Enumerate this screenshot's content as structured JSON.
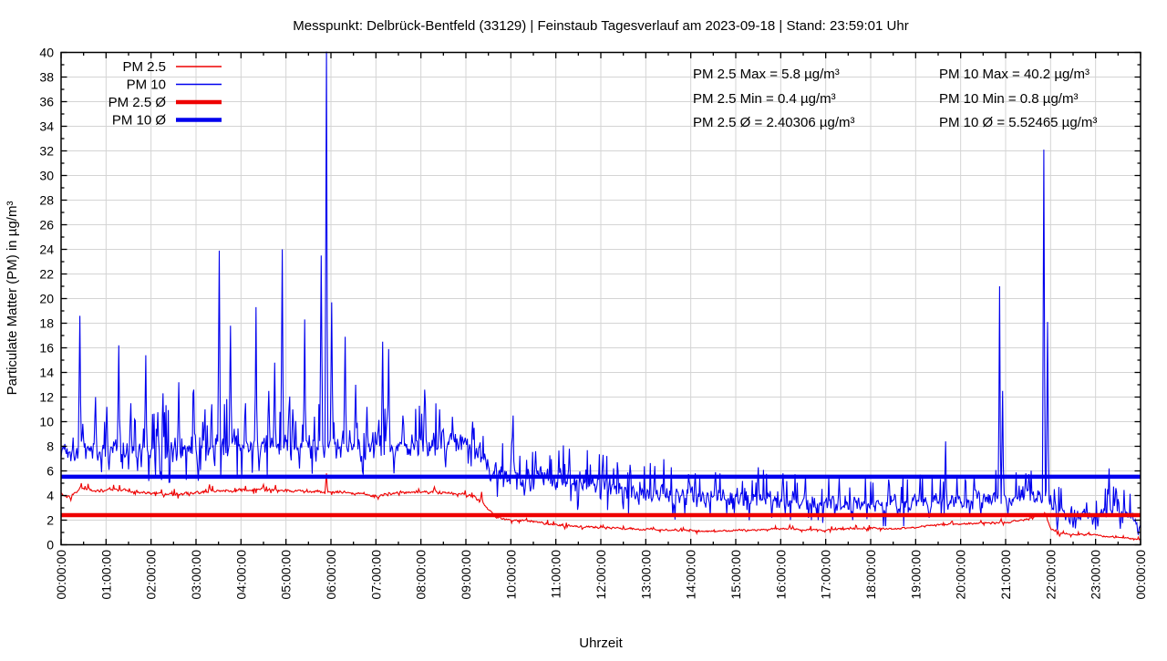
{
  "chart_data": {
    "type": "line",
    "title": "Messpunkt: Delbrück-Bentfeld (33129) | Feinstaub Tagesverlauf am 2023-09-18 | Stand: 23:59:01 Uhr",
    "xlabel": "Uhrzeit",
    "ylabel": "Particulate Matter (PM) in µg/m³",
    "xlim_hours": [
      0,
      24
    ],
    "ylim": [
      0,
      40
    ],
    "y_tick_step": 2,
    "y_minor_step": 1,
    "x_tick_step_hours": 1,
    "x_minor_step_hours": 0.5,
    "grid": true,
    "legend_position": "top-left",
    "x_tick_labels": [
      "00:00:00",
      "01:00:00",
      "02:00:00",
      "03:00:00",
      "04:00:00",
      "05:00:00",
      "06:00:00",
      "07:00:00",
      "08:00:00",
      "09:00:00",
      "10:00:00",
      "11:00:00",
      "12:00:00",
      "13:00:00",
      "14:00:00",
      "15:00:00",
      "16:00:00",
      "17:00:00",
      "18:00:00",
      "19:00:00",
      "20:00:00",
      "21:00:00",
      "22:00:00",
      "23:00:00",
      "00:00:00"
    ],
    "colors": {
      "red": "#ee0000",
      "blue": "#0000ee",
      "grid": "#d4d4d4",
      "border": "#000000",
      "text": "#000000"
    },
    "noise_seed": 1337,
    "series": [
      {
        "name": "PM 2.5",
        "kind": "data",
        "color": "#ee0000",
        "width": 1.1,
        "seed_offset": 11,
        "up_prob": 0.05,
        "down_prob": 0.04,
        "clamp_min": 0.4,
        "clamp_max": 5.8,
        "baseline": [
          [
            0,
            4.2
          ],
          [
            0.2,
            3.9
          ],
          [
            0.45,
            4.6
          ],
          [
            0.8,
            4.4
          ],
          [
            1.2,
            4.5
          ],
          [
            1.6,
            4.3
          ],
          [
            2,
            4.2
          ],
          [
            2.5,
            4.1
          ],
          [
            3,
            4.2
          ],
          [
            3.5,
            4.4
          ],
          [
            4,
            4.4
          ],
          [
            4.5,
            4.5
          ],
          [
            5,
            4.4
          ],
          [
            5.5,
            4.3
          ],
          [
            6,
            4.3
          ],
          [
            6.5,
            4.2
          ],
          [
            7,
            4.0
          ],
          [
            7.5,
            4.2
          ],
          [
            8,
            4.3
          ],
          [
            8.5,
            4.2
          ],
          [
            9,
            4.1
          ],
          [
            9.2,
            3.9
          ],
          [
            9.7,
            2.2
          ],
          [
            10,
            2.0
          ],
          [
            10.5,
            1.9
          ],
          [
            11,
            1.6
          ],
          [
            11.5,
            1.5
          ],
          [
            12,
            1.4
          ],
          [
            12.5,
            1.3
          ],
          [
            13,
            1.25
          ],
          [
            13.5,
            1.2
          ],
          [
            14,
            1.15
          ],
          [
            14.5,
            1.1
          ],
          [
            15,
            1.15
          ],
          [
            15.5,
            1.2
          ],
          [
            16,
            1.3
          ],
          [
            16.5,
            1.25
          ],
          [
            17,
            1.2
          ],
          [
            17.5,
            1.3
          ],
          [
            18,
            1.35
          ],
          [
            18.5,
            1.3
          ],
          [
            19,
            1.4
          ],
          [
            19.5,
            1.6
          ],
          [
            20,
            1.7
          ],
          [
            20.5,
            1.75
          ],
          [
            21,
            1.8
          ],
          [
            21.4,
            2.0
          ],
          [
            21.7,
            2.3
          ],
          [
            21.9,
            2.4
          ],
          [
            22,
            1.3
          ],
          [
            22.2,
            0.95
          ],
          [
            22.5,
            0.8
          ],
          [
            22.9,
            0.85
          ],
          [
            23.2,
            0.7
          ],
          [
            23.5,
            0.6
          ],
          [
            23.8,
            0.5
          ],
          [
            24,
            0.45
          ]
        ],
        "noise": [
          [
            0,
            0.15
          ],
          [
            9,
            0.13
          ],
          [
            10,
            0.1
          ],
          [
            22,
            0.08
          ],
          [
            24,
            0.06
          ]
        ],
        "spikes": [
          [
            0.45,
            5.0
          ],
          [
            3.3,
            4.9
          ],
          [
            4.5,
            4.9
          ],
          [
            5.9,
            5.8
          ],
          [
            8.3,
            4.7
          ],
          [
            9.35,
            4.3
          ],
          [
            16.2,
            1.6
          ],
          [
            19.8,
            1.9
          ],
          [
            20.9,
            2.1
          ],
          [
            21.87,
            2.6
          ],
          [
            22.85,
            1.0
          ]
        ],
        "dips": [
          [
            0.22,
            3.6
          ],
          [
            7.05,
            3.7
          ],
          [
            11.2,
            1.3
          ],
          [
            22.2,
            0.7
          ],
          [
            23.85,
            0.4
          ]
        ]
      },
      {
        "name": "PM 10",
        "kind": "data",
        "color": "#0000ee",
        "width": 1.1,
        "seed_offset": 0,
        "up_prob": 0.1,
        "down_prob": 0.07,
        "clamp_min": 0.8,
        "clamp_max": 40.2,
        "baseline": [
          [
            0,
            7.8
          ],
          [
            0.5,
            7.9
          ],
          [
            1,
            7.7
          ],
          [
            1.5,
            7.8
          ],
          [
            2,
            8.0
          ],
          [
            2.5,
            7.9
          ],
          [
            3,
            8.0
          ],
          [
            3.5,
            8.1
          ],
          [
            4,
            8.1
          ],
          [
            4.5,
            8.3
          ],
          [
            5,
            8.0
          ],
          [
            5.5,
            8.2
          ],
          [
            6,
            8.1
          ],
          [
            6.5,
            8.0
          ],
          [
            7,
            8.1
          ],
          [
            7.5,
            8.3
          ],
          [
            8,
            8.2
          ],
          [
            8.5,
            8.4
          ],
          [
            9,
            8.2
          ],
          [
            9.3,
            7.6
          ],
          [
            9.6,
            5.8
          ],
          [
            10,
            5.5
          ],
          [
            10.5,
            5.5
          ],
          [
            11,
            5.2
          ],
          [
            11.5,
            5.0
          ],
          [
            12,
            4.8
          ],
          [
            12.5,
            4.5
          ],
          [
            13,
            4.3
          ],
          [
            13.5,
            4.1
          ],
          [
            14,
            4.0
          ],
          [
            14.5,
            3.9
          ],
          [
            15,
            3.8
          ],
          [
            15.5,
            3.7
          ],
          [
            16,
            3.6
          ],
          [
            16.5,
            3.5
          ],
          [
            17,
            3.4
          ],
          [
            17.5,
            3.3
          ],
          [
            18,
            3.2
          ],
          [
            18.5,
            3.3
          ],
          [
            19,
            3.4
          ],
          [
            19.5,
            3.5
          ],
          [
            20,
            3.6
          ],
          [
            20.5,
            3.9
          ],
          [
            21,
            3.8
          ],
          [
            21.5,
            4.0
          ],
          [
            21.9,
            4.2
          ],
          [
            22.1,
            3.0
          ],
          [
            22.4,
            2.5
          ],
          [
            22.8,
            2.5
          ],
          [
            23.1,
            2.6
          ],
          [
            23.4,
            2.9
          ],
          [
            23.6,
            2.7
          ],
          [
            23.8,
            2.2
          ],
          [
            24,
            1.6
          ]
        ],
        "noise": [
          [
            0,
            1.1
          ],
          [
            3,
            1.3
          ],
          [
            6,
            1.3
          ],
          [
            8,
            1.2
          ],
          [
            9,
            1.0
          ],
          [
            9.6,
            1.0
          ],
          [
            11,
            1.1
          ],
          [
            12,
            1.0
          ],
          [
            13,
            0.9
          ],
          [
            15,
            0.8
          ],
          [
            18,
            0.8
          ],
          [
            20,
            0.8
          ],
          [
            21.5,
            0.8
          ],
          [
            22.2,
            0.7
          ],
          [
            23,
            0.8
          ],
          [
            24,
            0.6
          ]
        ],
        "spikes": [
          [
            0.42,
            18.6
          ],
          [
            0.77,
            12.0
          ],
          [
            1.02,
            11.2
          ],
          [
            1.28,
            16.2
          ],
          [
            1.55,
            11.5
          ],
          [
            1.88,
            15.4
          ],
          [
            2.27,
            12.3
          ],
          [
            2.62,
            13.2
          ],
          [
            2.95,
            12.6
          ],
          [
            3.2,
            11.0
          ],
          [
            3.51,
            23.9
          ],
          [
            3.77,
            17.8
          ],
          [
            4.1,
            11.5
          ],
          [
            4.33,
            19.3
          ],
          [
            4.62,
            12.5
          ],
          [
            4.75,
            14.8
          ],
          [
            4.91,
            24.0
          ],
          [
            5.15,
            11.0
          ],
          [
            5.42,
            18.3
          ],
          [
            5.78,
            23.5
          ],
          [
            5.9,
            40.2
          ],
          [
            6.02,
            19.7
          ],
          [
            6.31,
            16.9
          ],
          [
            6.55,
            13.0
          ],
          [
            6.8,
            11.2
          ],
          [
            7.15,
            16.5
          ],
          [
            7.28,
            15.9
          ],
          [
            7.6,
            10.5
          ],
          [
            8.09,
            12.6
          ],
          [
            8.41,
            11.0
          ],
          [
            8.7,
            10.4
          ],
          [
            9.15,
            10.0
          ],
          [
            10.05,
            10.5
          ],
          [
            10.55,
            7.6
          ],
          [
            11.3,
            7.8
          ],
          [
            12.05,
            7.3
          ],
          [
            12.65,
            6.5
          ],
          [
            13.2,
            6.4
          ],
          [
            14.1,
            5.8
          ],
          [
            14.55,
            5.9
          ],
          [
            15.5,
            6.3
          ],
          [
            16.05,
            5.8
          ],
          [
            16.55,
            5.6
          ],
          [
            17.3,
            5.4
          ],
          [
            18.4,
            5.3
          ],
          [
            19.1,
            5.7
          ],
          [
            19.67,
            8.4
          ],
          [
            20.3,
            5.6
          ],
          [
            20.87,
            21.0
          ],
          [
            20.93,
            12.5
          ],
          [
            21.45,
            5.8
          ],
          [
            21.85,
            32.1
          ],
          [
            21.93,
            18.1
          ],
          [
            23.3,
            6.2
          ],
          [
            23.45,
            4.6
          ]
        ],
        "dips": [
          [
            0.9,
            5.9
          ],
          [
            1.7,
            6.0
          ],
          [
            2.1,
            5.6
          ],
          [
            3.05,
            5.2
          ],
          [
            4.4,
            6.0
          ],
          [
            5.3,
            6.2
          ],
          [
            6.7,
            6.0
          ],
          [
            7.4,
            5.8
          ],
          [
            8.55,
            6.3
          ],
          [
            9.7,
            3.9
          ],
          [
            10.3,
            4.0
          ],
          [
            11.5,
            3.2
          ],
          [
            12.5,
            2.9
          ],
          [
            13.6,
            2.3
          ],
          [
            14.8,
            2.5
          ],
          [
            15.8,
            2.2
          ],
          [
            16.8,
            2.4
          ],
          [
            17.6,
            2.0
          ],
          [
            18.6,
            2.3
          ],
          [
            19.3,
            2.2
          ],
          [
            20.2,
            2.4
          ],
          [
            21.05,
            2.4
          ],
          [
            22.15,
            1.2
          ],
          [
            22.5,
            1.4
          ],
          [
            23.05,
            1.5
          ],
          [
            23.55,
            1.3
          ],
          [
            23.95,
            0.8
          ]
        ]
      },
      {
        "name": "PM 2.5 Ø",
        "kind": "hline",
        "color": "#ee0000",
        "width": 4.5,
        "value": 2.40306
      },
      {
        "name": "PM 10 Ø",
        "kind": "hline",
        "color": "#0000ee",
        "width": 4.5,
        "value": 5.52465
      }
    ],
    "stats": {
      "pm25": {
        "max": 5.8,
        "min": 0.4,
        "avg": 2.40306
      },
      "pm10": {
        "max": 40.2,
        "min": 0.8,
        "avg": 5.52465
      }
    },
    "stats_pm25": [
      "PM 2.5 Max = 5.8 µg/m³",
      "PM 2.5 Min = 0.4 µg/m³",
      "PM 2.5 Ø = 2.40306 µg/m³"
    ],
    "stats_pm10": [
      "PM 10 Max = 40.2 µg/m³",
      "PM 10 Min = 0.8 µg/m³",
      "PM 10 Ø = 5.52465 µg/m³"
    ]
  }
}
